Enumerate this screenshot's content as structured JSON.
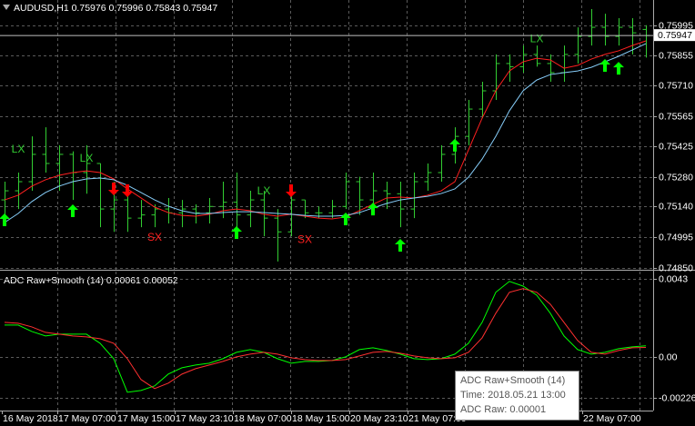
{
  "chart_data": [
    {
      "type": "ohlc",
      "title": "AUDUSD,H1  0.75976 0.75996 0.75843 0.75947",
      "color": "#32cd32",
      "open": [
        0.75171,
        0.75214,
        0.75257,
        0.75386,
        0.75343,
        0.75386,
        0.753,
        0.75343,
        0.75128,
        0.75171,
        0.75085,
        0.751,
        0.75128,
        0.7511,
        0.75128,
        0.7511,
        0.7514,
        0.7516,
        0.751,
        0.75171,
        0.75085,
        0.7502,
        0.75171,
        0.7511,
        0.7511,
        0.7514,
        0.75257,
        0.75171,
        0.75214,
        0.752,
        0.75128,
        0.75257,
        0.753,
        0.75386,
        0.75471,
        0.756,
        0.75686,
        0.75815,
        0.758,
        0.75858,
        0.75815,
        0.75772,
        0.75858,
        0.75943,
        0.75986,
        0.75943,
        0.75986,
        0.75976
      ],
      "high": [
        0.75257,
        0.753,
        0.75471,
        0.75514,
        0.75429,
        0.754,
        0.75429,
        0.75343,
        0.75257,
        0.75214,
        0.75171,
        0.7515,
        0.7518,
        0.75171,
        0.7515,
        0.7518,
        0.75257,
        0.753,
        0.75214,
        0.75214,
        0.75128,
        0.75214,
        0.75171,
        0.7514,
        0.75171,
        0.753,
        0.7528,
        0.753,
        0.75257,
        0.75257,
        0.753,
        0.75343,
        0.75429,
        0.75514,
        0.75643,
        0.75729,
        0.75858,
        0.75858,
        0.759,
        0.759,
        0.75858,
        0.759,
        0.75986,
        0.76072,
        0.7605,
        0.76029,
        0.76029,
        0.75996
      ],
      "low": [
        0.75085,
        0.75128,
        0.75214,
        0.753,
        0.75214,
        0.75171,
        0.752,
        0.75042,
        0.7502,
        0.7502,
        0.75042,
        0.75042,
        0.7506,
        0.75042,
        0.7506,
        0.7506,
        0.75085,
        0.75042,
        0.75042,
        0.74999,
        0.7488,
        0.74999,
        0.75085,
        0.75085,
        0.75085,
        0.75128,
        0.751,
        0.75128,
        0.75128,
        0.75042,
        0.75085,
        0.75214,
        0.75257,
        0.75343,
        0.75429,
        0.75557,
        0.75643,
        0.75729,
        0.75772,
        0.758,
        0.75729,
        0.75729,
        0.75815,
        0.759,
        0.759,
        0.759,
        0.75858,
        0.75843
      ],
      "close": [
        0.75214,
        0.75257,
        0.75386,
        0.75343,
        0.75386,
        0.753,
        0.75343,
        0.75128,
        0.75171,
        0.75085,
        0.751,
        0.75128,
        0.7511,
        0.75128,
        0.7511,
        0.7514,
        0.7516,
        0.751,
        0.75171,
        0.75085,
        0.7502,
        0.75171,
        0.7511,
        0.7511,
        0.7514,
        0.75257,
        0.75171,
        0.75214,
        0.752,
        0.75128,
        0.75257,
        0.753,
        0.75386,
        0.75471,
        0.756,
        0.75686,
        0.75815,
        0.758,
        0.75858,
        0.75815,
        0.75772,
        0.75858,
        0.75943,
        0.75986,
        0.75943,
        0.75986,
        0.7596,
        0.75947
      ],
      "series": [
        {
          "color": "#ff2020",
          "values": [
            0.75171,
            0.75193,
            0.75236,
            0.75266,
            0.75287,
            0.753,
            0.75308,
            0.753,
            0.7527,
            0.75223,
            0.7518,
            0.75137,
            0.75111,
            0.75098,
            0.75094,
            0.75103,
            0.7512,
            0.75128,
            0.7512,
            0.75103,
            0.75094,
            0.75103,
            0.75094,
            0.75085,
            0.75081,
            0.7509,
            0.7512,
            0.7515,
            0.7518,
            0.75184,
            0.7518,
            0.75193,
            0.75214,
            0.75257,
            0.75407,
            0.75557,
            0.75686,
            0.7578,
            0.75823,
            0.7584,
            0.75832,
            0.75793,
            0.75806,
            0.75836,
            0.75858,
            0.75875,
            0.759,
            0.75922
          ]
        },
        {
          "color": "#87cefa",
          "values": [
            0.75064,
            0.75107,
            0.75163,
            0.75206,
            0.75236,
            0.75257,
            0.7527,
            0.75274,
            0.75266,
            0.7524,
            0.75206,
            0.75171,
            0.75141,
            0.7512,
            0.75107,
            0.75107,
            0.75111,
            0.75115,
            0.75115,
            0.75111,
            0.75107,
            0.75103,
            0.75098,
            0.75094,
            0.75094,
            0.75098,
            0.75111,
            0.75133,
            0.75154,
            0.75171,
            0.7518,
            0.75188,
            0.75201,
            0.75223,
            0.75278,
            0.75364,
            0.75471,
            0.75592,
            0.75686,
            0.75737,
            0.75763,
            0.75772,
            0.7578,
            0.75797,
            0.75823,
            0.75849,
            0.75879,
            0.75909
          ]
        }
      ],
      "signals_up": [
        {
          "x": 0,
          "y": 0.75077
        },
        {
          "x": 5,
          "y": 0.7512
        },
        {
          "x": 17,
          "y": 0.75017
        },
        {
          "x": 25,
          "y": 0.75081
        },
        {
          "x": 27,
          "y": 0.75128
        },
        {
          "x": 29,
          "y": 0.74957
        },
        {
          "x": 33,
          "y": 0.75429
        },
        {
          "x": 44,
          "y": 0.75806
        },
        {
          "x": 45,
          "y": 0.75793
        }
      ],
      "signals_down": [
        {
          "x": 8,
          "y": 0.75223
        },
        {
          "x": 9,
          "y": 0.75214
        },
        {
          "x": 21,
          "y": 0.75214
        }
      ],
      "signal_up_color": "#00ff00",
      "signal_down_color": "#ff0000",
      "annotations": [
        {
          "text": "LX",
          "x": 1,
          "y": 0.75407,
          "color": "#32cd32"
        },
        {
          "text": "LX",
          "x": 6,
          "y": 0.75364,
          "color": "#32cd32"
        },
        {
          "text": "LX",
          "x": 19,
          "y": 0.7521,
          "color": "#32cd32"
        },
        {
          "text": "LX",
          "x": 39,
          "y": 0.7593,
          "color": "#32cd32"
        },
        {
          "text": "SX",
          "x": 11,
          "y": 0.74991,
          "color": "#ff2020"
        },
        {
          "text": "SX",
          "x": 22,
          "y": 0.74982,
          "color": "#ff2020"
        }
      ],
      "current_price": 0.75947,
      "ylim": [
        0.74841,
        0.76115
      ],
      "yticks": [
        0.75995,
        0.75855,
        {
          "value": 0.7571,
          "label": "0.75710"
        },
        0.75565,
        0.75425,
        {
          "value": 0.7528,
          "label": "0.75280"
        },
        {
          "value": 0.7514,
          "label": "0.75140"
        },
        0.74995,
        {
          "value": 0.7485,
          "label": "0.74850"
        }
      ],
      "grid": true
    },
    {
      "type": "line",
      "title": "ADC Raw+Smooth (14) 0.00061 0.00052",
      "series": [
        {
          "color": "#00ff00",
          "values": [
            0.00175,
            0.00175,
            0.0014,
            0.00115,
            0.00125,
            0.00125,
            0.00125,
            0.00075,
            -0.0001,
            -0.00195,
            -0.00185,
            -0.0016,
            -0.00095,
            -0.0006,
            -0.00045,
            -0.00035,
            -0.0001,
            0.00025,
            0.0004,
            0.00025,
            -0.0001,
            -0.00035,
            -0.00025,
            -0.00025,
            -0.0002,
            0,
            0.0004,
            0.0005,
            0.00035,
            0.00015,
            -0.0001,
            -0.00015,
            -0.0001,
            0.00015,
            0.00075,
            0.0019,
            0.00356,
            0.00416,
            0.0039,
            0.0034,
            0.0024,
            0.00115,
            0.0004,
            0.00015,
            0.00025,
            0.00045,
            0.00055,
            0.00061
          ]
        },
        {
          "color": "#ff3030",
          "values": [
            0.0019,
            0.00185,
            0.00165,
            0.00135,
            0.00125,
            0.00115,
            0.0011,
            0.001,
            0.00075,
            -0.0001,
            -0.00125,
            -0.00175,
            -0.00145,
            -0.00095,
            -0.00065,
            -0.00045,
            -0.00025,
            0,
            0.00015,
            0.00025,
            0.00015,
            -5e-05,
            -0.00015,
            -0.0002,
            -0.0002,
            -0.00015,
            5e-05,
            0.00025,
            0.0003,
            0.0002,
            5e-05,
            -5e-05,
            -0.0001,
            -5e-05,
            0.00025,
            0.00105,
            0.0024,
            0.00356,
            0.00376,
            0.00356,
            0.0029,
            0.0019,
            0.0009,
            0.00025,
            0.00015,
            0.00035,
            0.0005,
            0.00052
          ]
        }
      ],
      "ylim": [
        -0.00296,
        0.0047
      ],
      "yticks": [
        0.0043,
        {
          "value": 0,
          "label": "0.00"
        },
        -0.00226
      ],
      "grid": true,
      "x_labels": [
        "16 May 2018",
        "17 May 07:00",
        "17 May 15:00",
        "17 May 23:10",
        "18 May 07:00",
        "18 May 15:00",
        "20 May 23:10",
        "21 May 07:00",
        "22 May 07:00"
      ],
      "tooltip": {
        "title": "ADC Raw+Smooth (14)",
        "time": "Time: 2018.05.21 13:00",
        "value": "ADC Raw: 0.00001"
      }
    }
  ]
}
